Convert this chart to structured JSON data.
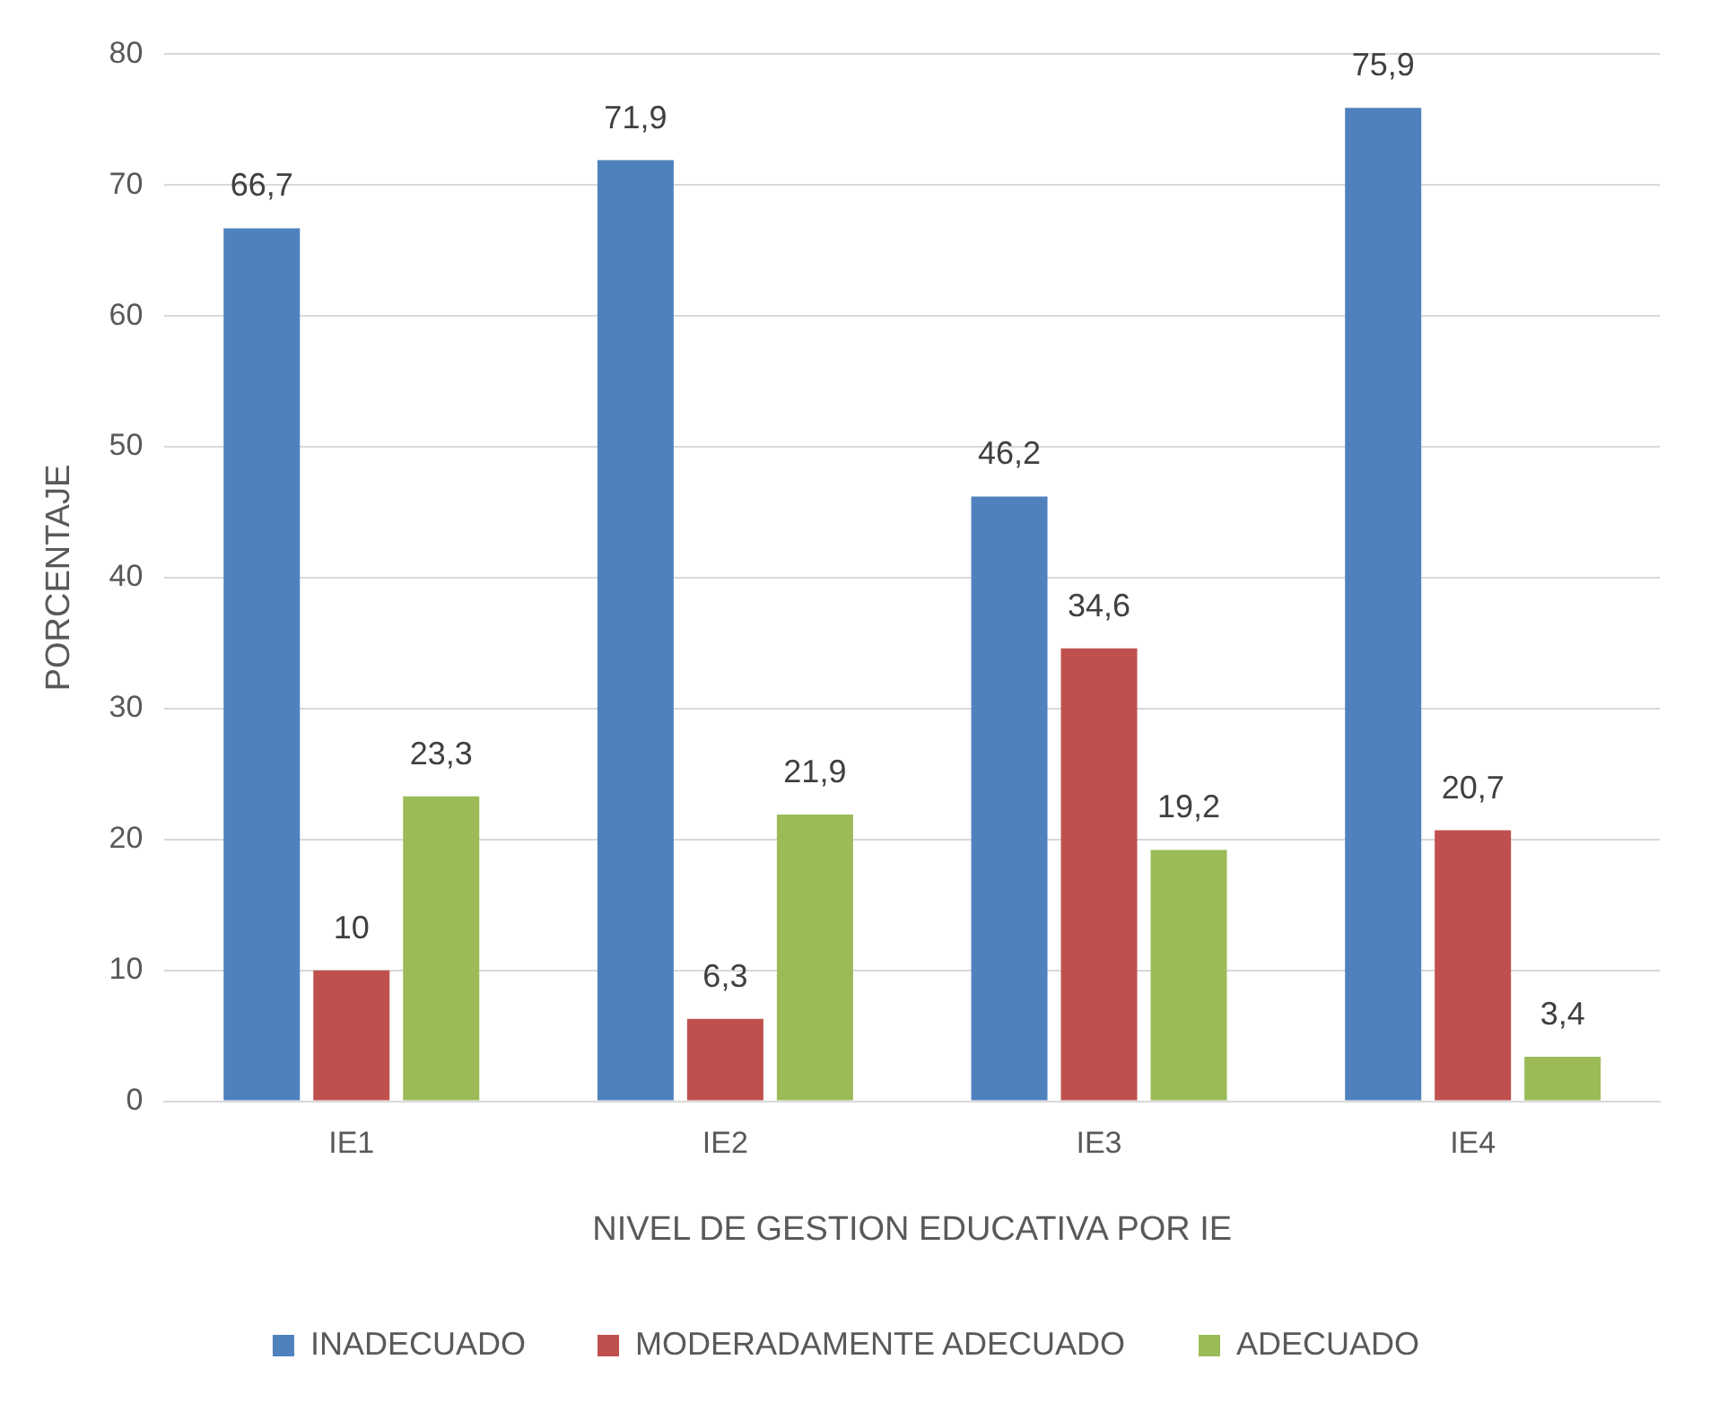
{
  "chart_data": {
    "type": "bar",
    "xlabel": "NIVEL DE GESTION EDUCATIVA POR IE",
    "ylabel": "PORCENTAJE",
    "categories": [
      "IE1",
      "IE2",
      "IE3",
      "IE4"
    ],
    "series": [
      {
        "name": "INADECUADO",
        "color": "#4f81bd",
        "values": [
          66.7,
          71.9,
          46.2,
          75.9
        ],
        "value_labels": [
          "66,7",
          "71,9",
          "46,2",
          "75,9"
        ]
      },
      {
        "name": "MODERADAMENTE ADECUADO",
        "color": "#c0504d",
        "values": [
          10,
          6.3,
          34.6,
          20.7
        ],
        "value_labels": [
          "10",
          "6,3",
          "34,6",
          "20,7"
        ]
      },
      {
        "name": "ADECUADO",
        "color": "#9bbb59",
        "values": [
          23.3,
          21.9,
          19.2,
          3.4
        ],
        "value_labels": [
          "23,3",
          "21,9",
          "19,2",
          "3,4"
        ]
      }
    ],
    "ylim": [
      0,
      80
    ],
    "yticks": [
      0,
      10,
      20,
      30,
      40,
      50,
      60,
      70,
      80
    ],
    "grid": "y",
    "legend": "bottom"
  }
}
